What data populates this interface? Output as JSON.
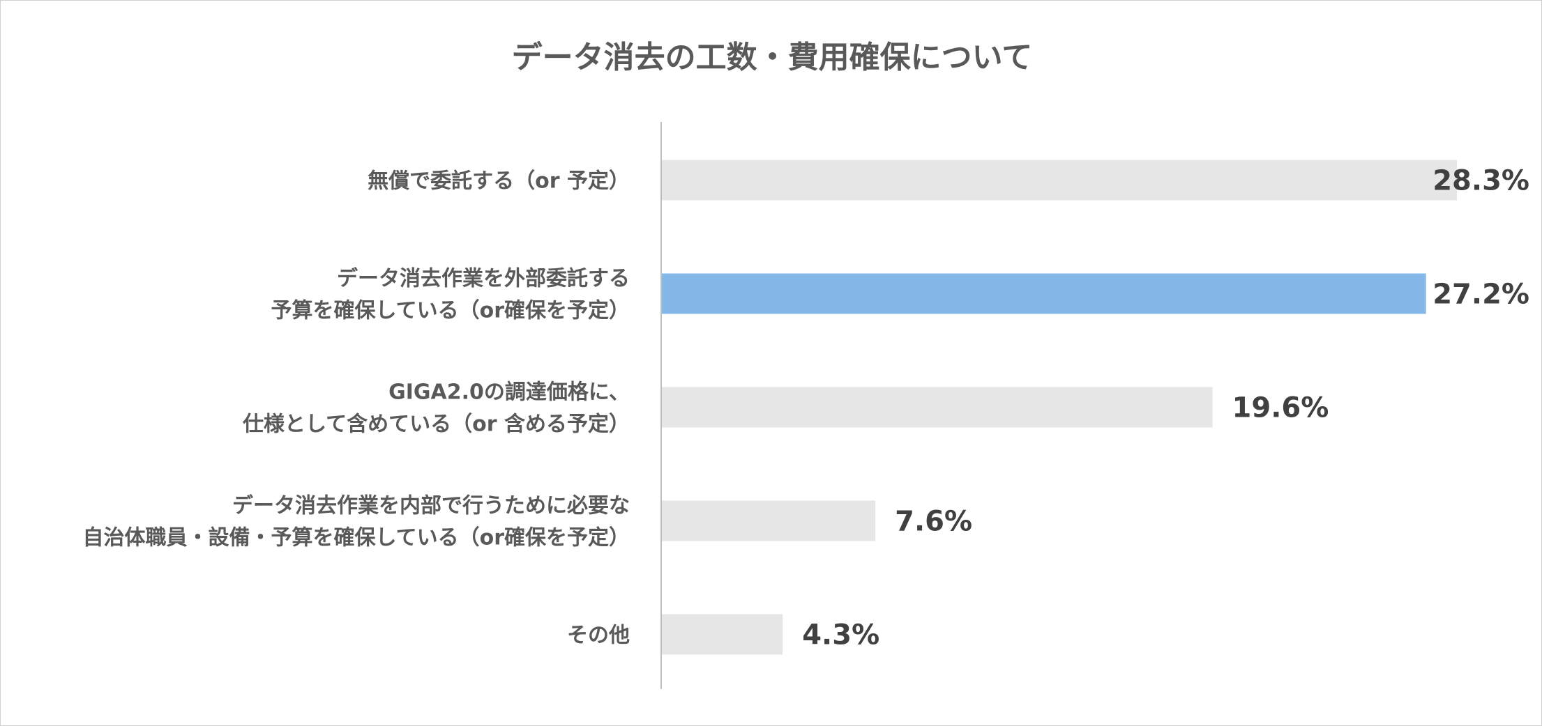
{
  "chart_data": {
    "type": "bar",
    "orientation": "horizontal",
    "title": "データ消去の工数・費用確保について",
    "xlabel": "",
    "ylabel": "",
    "xlim": [
      0,
      28.3
    ],
    "grid": false,
    "legend": "none",
    "value_suffix": "%",
    "categories": [
      [
        "無償で委託する（or 予定）"
      ],
      [
        "データ消去作業を外部委託する",
        "予算を確保している（or確保を予定）"
      ],
      [
        "GIGA2.0の調達価格に、",
        "仕様として含めている（or 含める予定）"
      ],
      [
        "データ消去作業を内部で行うために必要な",
        "自治体職員・設備・予算を確保している（or確保を予定）"
      ],
      [
        "その他"
      ]
    ],
    "value_labels": [
      "28.3%",
      "27.2%",
      "19.6%",
      "7.6%",
      "4.3%"
    ],
    "series": [
      {
        "values": [
          28.3,
          27.2,
          19.6,
          7.6,
          4.3
        ]
      }
    ],
    "colors": {
      "default_bar": "#e6e6e6",
      "highlight_bar": "#85b8e8",
      "axis_line": "#bfbfbf",
      "label_text": "#595959",
      "value_text": "#404040"
    },
    "highlight_index": 1
  }
}
